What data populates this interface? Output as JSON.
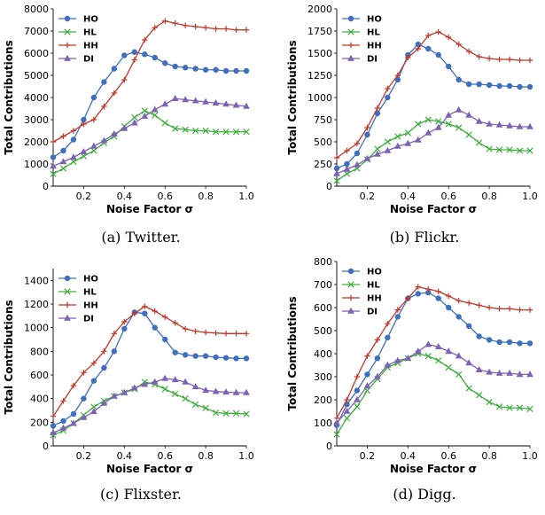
{
  "colors": {
    "HO": "#3f6fbf",
    "HL": "#3cae3c",
    "HH": "#c0392b",
    "DI": "#7d62b3"
  },
  "markers": {
    "HO": "circle",
    "HL": "x",
    "HH": "plus",
    "DI": "triangle"
  },
  "chart_data": [
    {
      "type": "line",
      "caption": "(a) Twitter.",
      "xlabel": "Noise Factor σ",
      "ylabel": "Total Contributions",
      "xlim": [
        0.05,
        1.0
      ],
      "ylim": [
        0,
        8000
      ],
      "xticks": [
        0.2,
        0.4,
        0.6,
        0.8,
        1.0
      ],
      "xticklabels": [
        "0.2",
        "0.4",
        "0.6",
        "0.8",
        "1.0"
      ],
      "yticks": [
        0,
        1000,
        2000,
        3000,
        4000,
        5000,
        6000,
        7000,
        8000
      ],
      "yticklabels": [
        "0",
        "1000",
        "2000",
        "3000",
        "4000",
        "5000",
        "6000",
        "7000",
        "8000"
      ],
      "legend": "top-left",
      "x": [
        0.05,
        0.1,
        0.15,
        0.2,
        0.25,
        0.3,
        0.35,
        0.4,
        0.45,
        0.5,
        0.55,
        0.6,
        0.65,
        0.7,
        0.75,
        0.8,
        0.85,
        0.9,
        0.95,
        1.0
      ],
      "series": [
        {
          "name": "HO",
          "values": [
            1300,
            1600,
            2100,
            3000,
            4000,
            4700,
            5300,
            5900,
            6050,
            5950,
            5800,
            5550,
            5400,
            5350,
            5300,
            5250,
            5250,
            5200,
            5200,
            5200
          ]
        },
        {
          "name": "HL",
          "values": [
            550,
            800,
            1100,
            1350,
            1600,
            1950,
            2250,
            2700,
            3100,
            3400,
            3200,
            2850,
            2600,
            2550,
            2500,
            2500,
            2450,
            2450,
            2450,
            2450
          ]
        },
        {
          "name": "HH",
          "values": [
            2000,
            2250,
            2500,
            2800,
            3000,
            3600,
            4200,
            4800,
            5700,
            6600,
            7150,
            7450,
            7350,
            7250,
            7200,
            7150,
            7100,
            7100,
            7050,
            7050
          ]
        },
        {
          "name": "DI",
          "values": [
            900,
            1100,
            1300,
            1550,
            1800,
            2050,
            2350,
            2600,
            2850,
            3150,
            3450,
            3700,
            3950,
            3900,
            3850,
            3800,
            3750,
            3700,
            3650,
            3600
          ]
        }
      ]
    },
    {
      "type": "line",
      "caption": "(b) Flickr.",
      "xlabel": "Noise Factor σ",
      "ylabel": "Total Contributions",
      "xlim": [
        0.05,
        1.0
      ],
      "ylim": [
        0,
        2000
      ],
      "xticks": [
        0.2,
        0.4,
        0.6,
        0.8,
        1.0
      ],
      "xticklabels": [
        "0.2",
        "0.4",
        "0.6",
        "0.8",
        "1.0"
      ],
      "yticks": [
        0,
        250,
        500,
        750,
        1000,
        1250,
        1500,
        1750,
        2000
      ],
      "yticklabels": [
        "0",
        "250",
        "500",
        "750",
        "1000",
        "1250",
        "1500",
        "1750",
        "2000"
      ],
      "legend": "top-left",
      "x": [
        0.05,
        0.1,
        0.15,
        0.2,
        0.25,
        0.3,
        0.35,
        0.4,
        0.45,
        0.5,
        0.55,
        0.6,
        0.65,
        0.7,
        0.75,
        0.8,
        0.85,
        0.9,
        0.95,
        1.0
      ],
      "series": [
        {
          "name": "HO",
          "values": [
            200,
            250,
            370,
            580,
            820,
            1000,
            1200,
            1480,
            1600,
            1550,
            1480,
            1350,
            1200,
            1150,
            1150,
            1140,
            1130,
            1130,
            1120,
            1120
          ]
        },
        {
          "name": "HL",
          "values": [
            60,
            140,
            200,
            300,
            420,
            500,
            560,
            600,
            700,
            750,
            730,
            700,
            660,
            580,
            490,
            420,
            410,
            410,
            400,
            400
          ]
        },
        {
          "name": "HH",
          "values": [
            320,
            400,
            480,
            660,
            880,
            1100,
            1250,
            1450,
            1550,
            1700,
            1740,
            1680,
            1600,
            1520,
            1460,
            1440,
            1430,
            1430,
            1420,
            1420
          ]
        },
        {
          "name": "DI",
          "values": [
            140,
            190,
            240,
            310,
            360,
            400,
            450,
            480,
            520,
            600,
            660,
            800,
            860,
            800,
            730,
            700,
            690,
            680,
            670,
            670
          ]
        }
      ]
    },
    {
      "type": "line",
      "caption": "(c) Flixster.",
      "xlabel": "Noise Factor σ",
      "ylabel": "Total Contributions",
      "xlim": [
        0.05,
        1.0
      ],
      "ylim": [
        0,
        1500
      ],
      "xticks": [
        0.2,
        0.4,
        0.6,
        0.8,
        1.0
      ],
      "xticklabels": [
        "0.2",
        "0.4",
        "0.6",
        "0.8",
        "1.0"
      ],
      "yticks": [
        0,
        200,
        400,
        600,
        800,
        1000,
        1200,
        1400
      ],
      "yticklabels": [
        "0",
        "200",
        "400",
        "600",
        "800",
        "1000",
        "1200",
        "1400"
      ],
      "legend": "top-left",
      "x": [
        0.05,
        0.1,
        0.15,
        0.2,
        0.25,
        0.3,
        0.35,
        0.4,
        0.45,
        0.5,
        0.55,
        0.6,
        0.65,
        0.7,
        0.75,
        0.8,
        0.85,
        0.9,
        0.95,
        1.0
      ],
      "series": [
        {
          "name": "HO",
          "values": [
            170,
            210,
            270,
            400,
            550,
            660,
            800,
            990,
            1130,
            1120,
            1000,
            900,
            790,
            770,
            760,
            760,
            750,
            745,
            740,
            740
          ]
        },
        {
          "name": "HL",
          "values": [
            90,
            130,
            190,
            260,
            330,
            380,
            420,
            450,
            480,
            540,
            520,
            480,
            440,
            400,
            350,
            320,
            280,
            275,
            275,
            270
          ]
        },
        {
          "name": "HH",
          "values": [
            250,
            380,
            510,
            620,
            700,
            800,
            950,
            1050,
            1120,
            1180,
            1140,
            1090,
            1040,
            990,
            970,
            960,
            955,
            950,
            950,
            950
          ]
        },
        {
          "name": "DI",
          "values": [
            110,
            150,
            190,
            240,
            290,
            360,
            420,
            450,
            490,
            520,
            540,
            570,
            560,
            540,
            500,
            470,
            460,
            455,
            450,
            450
          ]
        }
      ]
    },
    {
      "type": "line",
      "caption": "(d) Digg.",
      "xlabel": "Noise Factor σ",
      "ylabel": "Total Contributions",
      "xlim": [
        0.05,
        1.0
      ],
      "ylim": [
        0,
        800
      ],
      "xticks": [
        0.2,
        0.4,
        0.6,
        0.8,
        1.0
      ],
      "xticklabels": [
        "0.2",
        "0.4",
        "0.6",
        "0.8",
        "1.0"
      ],
      "yticks": [
        0,
        100,
        200,
        300,
        400,
        500,
        600,
        700,
        800
      ],
      "yticklabels": [
        "0",
        "100",
        "200",
        "300",
        "400",
        "500",
        "600",
        "700",
        "800"
      ],
      "legend": "top-left",
      "x": [
        0.05,
        0.1,
        0.15,
        0.2,
        0.25,
        0.3,
        0.35,
        0.4,
        0.45,
        0.5,
        0.55,
        0.6,
        0.65,
        0.7,
        0.75,
        0.8,
        0.85,
        0.9,
        0.95,
        1.0
      ],
      "series": [
        {
          "name": "HO",
          "values": [
            90,
            180,
            240,
            310,
            380,
            470,
            560,
            640,
            660,
            665,
            640,
            600,
            560,
            520,
            475,
            460,
            450,
            450,
            445,
            445
          ]
        },
        {
          "name": "HL",
          "values": [
            50,
            120,
            170,
            240,
            290,
            340,
            360,
            380,
            400,
            390,
            370,
            340,
            310,
            250,
            220,
            190,
            170,
            165,
            165,
            160
          ]
        },
        {
          "name": "HH",
          "values": [
            120,
            200,
            300,
            390,
            460,
            530,
            590,
            640,
            690,
            680,
            670,
            650,
            630,
            620,
            610,
            600,
            595,
            595,
            590,
            590
          ]
        },
        {
          "name": "DI",
          "values": [
            100,
            150,
            200,
            260,
            300,
            350,
            370,
            380,
            410,
            440,
            430,
            410,
            390,
            360,
            330,
            320,
            315,
            315,
            310,
            310
          ]
        }
      ]
    }
  ]
}
